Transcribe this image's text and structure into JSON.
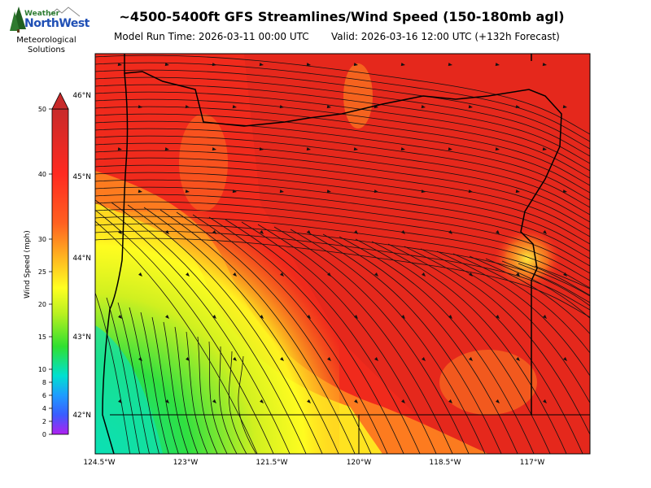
{
  "header": {
    "title": "~4500-5400ft GFS Streamlines/Wind Speed (150-180mb agl)",
    "model_run": "Model Run Time: 2026-03-11 00:00 UTC",
    "valid": "Valid: 2026-03-16 12:00 UTC  (+132h Forecast)"
  },
  "logo": {
    "word1": "Weather",
    "word2": "NorthWest",
    "sub1": "Meteorological",
    "sub2": "Solutions"
  },
  "colorbar": {
    "label": "Wind Speed (mph)",
    "ticks": [
      "0",
      "2",
      "4",
      "6",
      "8",
      "10",
      "15",
      "20",
      "25",
      "30",
      "40",
      "50"
    ],
    "colors": {
      "purple": "#a020f0",
      "blue": "#1e5cff",
      "cyan": "#00e0d0",
      "green": "#30e030",
      "yellow": "#ffff20",
      "orange": "#ff9a20",
      "red": "#ff2a20",
      "dark_red": "#c82a2a"
    }
  },
  "map": {
    "lat_labels": [
      "46°N",
      "45°N",
      "44°N",
      "43°N",
      "42°N"
    ],
    "lon_labels": [
      "124.5°W",
      "123°W",
      "121.5°W",
      "120°W",
      "118.5°W",
      "117°W"
    ]
  }
}
